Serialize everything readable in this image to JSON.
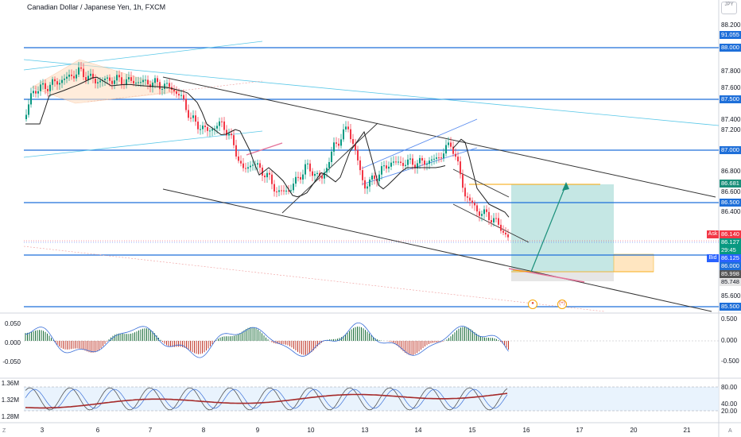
{
  "chart": {
    "title": "Canadian Dollar / Japanese Yen, 1h, FXCM",
    "currency_label": "JPY",
    "corner_left": "Z",
    "corner_right": "A",
    "price_axis": {
      "ticks": [
        "88.200",
        "87.800",
        "87.600",
        "87.400",
        "87.200",
        "86.800",
        "86.600",
        "86.400",
        "85.600"
      ]
    },
    "badges": {
      "b91055": "91.055",
      "b88000": "88.000",
      "b87500": "87.500",
      "b87000": "87.000",
      "b86681": "86.681",
      "b86500": "86.500",
      "ask_value": "86.140",
      "bid_value": "86.125",
      "last_price": "86.127",
      "countdown": "29:45",
      "b86000": "86.000",
      "b85998": "85.998",
      "b85748": "85.748",
      "b85500": "85.500"
    },
    "ask_label": "Ask",
    "bid_label": "Bid",
    "time_axis": [
      "3",
      "6",
      "7",
      "8",
      "9",
      "10",
      "13",
      "14",
      "15",
      "16",
      "17",
      "20",
      "21"
    ],
    "osc_axis": {
      "right": [
        "0.500",
        "0.000",
        "-0.500"
      ],
      "left": [
        "0.050",
        "0.000",
        "-0.050"
      ]
    },
    "stoch_axis": {
      "right": [
        "80.00",
        "40.00",
        "20.00"
      ],
      "left": [
        "1.36M",
        "1.32M",
        "1.28M"
      ]
    },
    "markers": {
      "m1": "●",
      "m2": "(+)"
    },
    "colors": {
      "level_line": "#1e6fd9",
      "badge_blue": "#1e6fd9",
      "ask": "#f23645",
      "bid": "#2962ff",
      "up": "#089981",
      "down": "#f23645",
      "target_zone": "#b2dfdb",
      "stop_zone": "#ffe0b2"
    }
  }
}
